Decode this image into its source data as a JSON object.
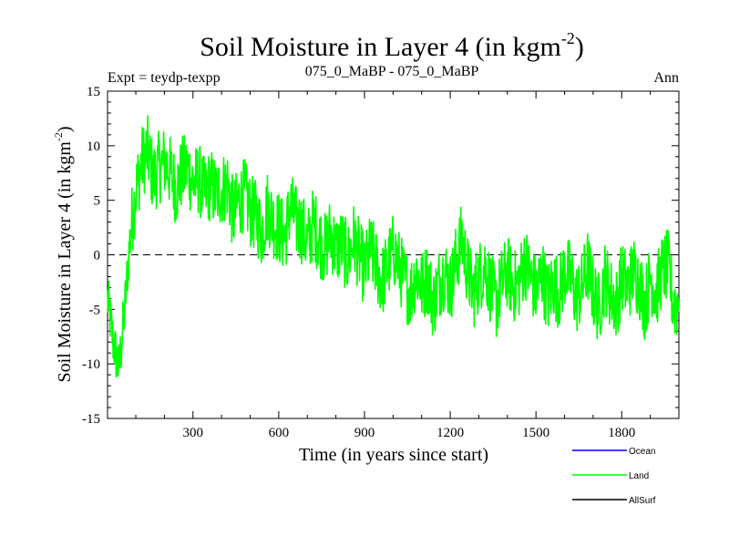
{
  "chart_data": {
    "type": "line",
    "title": "Soil Moisture in Layer 4 (in kgm",
    "title_superscript": "-2",
    "title_close": ")",
    "subtitle_left": "Expt = teydp-texpp",
    "subtitle_center": "075_0_MaBP - 075_0_MaBP",
    "subtitle_right": "Ann",
    "xlabel": "Time (in years since start)",
    "ylabel": "Soil Moisture in Layer 4 (in kgm",
    "ylabel_superscript": "-2",
    "ylabel_close": ")",
    "xlim": [
      1,
      2000
    ],
    "ylim": [
      -15,
      15
    ],
    "x_ticks": [
      300,
      600,
      900,
      1200,
      1500,
      1800
    ],
    "x_tick_labels": [
      "300",
      "600",
      "900",
      "1200",
      "1500",
      "1800"
    ],
    "y_ticks": [
      -15,
      -10,
      -5,
      0,
      5,
      10,
      15
    ],
    "y_tick_labels": [
      "-15",
      "-10",
      "-5",
      "0",
      "5",
      "10",
      "15"
    ],
    "zero_line": true,
    "legend": [
      {
        "name": "Ocean",
        "color": "#0000ff"
      },
      {
        "name": "Land",
        "color": "#00ff00"
      },
      {
        "name": "AllSurf",
        "color": "#000000"
      }
    ],
    "series": [
      {
        "name": "Land",
        "color": "#00ff00",
        "x_start": 1,
        "x_step": 20,
        "values": [
          -4.0,
          -8.0,
          -10.5,
          -5.0,
          2.0,
          6.0,
          8.5,
          9.5,
          7.0,
          8.0,
          8.5,
          7.5,
          6.0,
          7.5,
          8.0,
          6.5,
          7.0,
          5.5,
          6.5,
          5.5,
          6.0,
          6.5,
          3.5,
          5.0,
          5.5,
          4.0,
          3.5,
          2.0,
          4.5,
          3.0,
          2.5,
          1.5,
          4.5,
          3.0,
          2.5,
          1.0,
          3.0,
          1.5,
          0.5,
          2.0,
          0.5,
          1.0,
          -0.5,
          1.5,
          0.0,
          -1.5,
          0.5,
          -1.0,
          -2.5,
          -1.0,
          0.5,
          -1.0,
          -2.5,
          -3.5,
          -1.5,
          -3.0,
          -2.0,
          -4.5,
          -2.5,
          -1.5,
          -3.0,
          -0.5,
          1.5,
          -1.5,
          -3.5,
          -2.0,
          -1.0,
          -3.0,
          -4.5,
          -2.5,
          -1.5,
          -3.0,
          -2.5,
          -0.5,
          -2.0,
          -3.5,
          -1.5,
          -4.0,
          -2.5,
          -3.5,
          -1.5,
          -2.0,
          -4.0,
          -3.0,
          -1.0,
          -3.5,
          -5.0,
          -2.0,
          -3.5,
          -4.5,
          -2.0,
          -3.0,
          -1.5,
          -2.5,
          -4.5,
          -2.0,
          -3.5,
          -1.5,
          -1.0,
          -4.5
        ]
      },
      {
        "name": "Ocean",
        "color": "#0000ff",
        "values": []
      },
      {
        "name": "AllSurf",
        "color": "#000000",
        "values": []
      }
    ]
  }
}
